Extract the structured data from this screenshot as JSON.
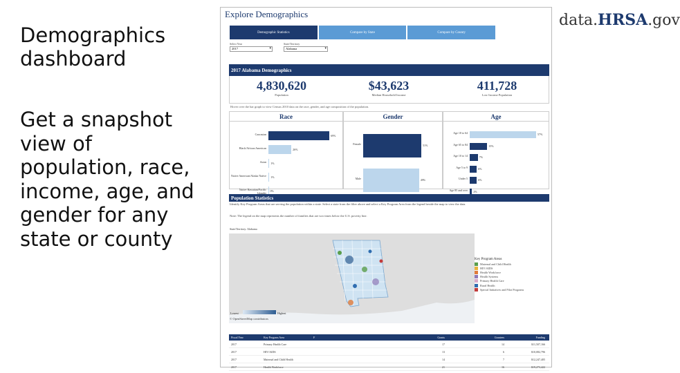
{
  "slide": {
    "title": "Demographics dashboard",
    "body": "Get a snapshot view of population, race, income, age, and gender for any state or county",
    "brand_prefix": "data.",
    "brand_main": "HRSA",
    "brand_suffix": ".gov"
  },
  "dashboard": {
    "title": "Explore Demographics",
    "tabs": [
      "Demographic Statistics",
      "Compare by State",
      "Compare by County"
    ],
    "filters": {
      "year_label": "Select Year",
      "year_value": "2017",
      "state_label": "State/Territory",
      "state_value": "Alabama"
    },
    "demo_band": "2017 Alabama Demographics",
    "stats": [
      {
        "value": "4,830,620",
        "label": "Population"
      },
      {
        "value": "$43,623",
        "label": "Median Household Income"
      },
      {
        "value": "411,728",
        "label": "Low Income Population"
      }
    ],
    "hover_note": "Hover over the bar graph to view Census 2010 data on the race, gender, and age composition of the population.",
    "race": {
      "title": "Race",
      "bars": [
        {
          "label": "Caucasian",
          "value": 69,
          "text": "69%"
        },
        {
          "label": "Black/African American",
          "value": 26,
          "text": "26%"
        },
        {
          "label": "Asian",
          "value": 1,
          "text": "1%"
        },
        {
          "label": "Native American/Alaska Native",
          "value": 1,
          "text": "1%"
        },
        {
          "label": "Native Hawaiian/Pacific Islander",
          "value": 0,
          "text": "0%"
        }
      ]
    },
    "gender": {
      "title": "Gender",
      "bars": [
        {
          "label": "Female",
          "value": 51,
          "text": "51%"
        },
        {
          "label": "Male",
          "value": 49,
          "text": "49%"
        }
      ]
    },
    "age": {
      "title": "Age",
      "bars": [
        {
          "label": "Age 18 to 64",
          "value": 57,
          "text": "57%"
        },
        {
          "label": "Age 65 to 84",
          "value": 15,
          "text": "15%"
        },
        {
          "label": "Age 10 to 14",
          "value": 7,
          "text": "7%"
        },
        {
          "label": "Age 5 to 9",
          "value": 6,
          "text": "6%"
        },
        {
          "label": "Under 5",
          "value": 6,
          "text": "6%"
        },
        {
          "label": "Age 85 and over",
          "value": 2,
          "text": "2%"
        }
      ]
    },
    "pop_band": "Population Statistics",
    "pop_intro": "Identify Key Program Areas that are serving the population within a state. Select a state from the filter above and select a Key Program Area from the legend beside the map to view the data.",
    "pop_note": "Note: The legend on the map represents the number of families that are two times below the U.S. poverty line.",
    "map_state_label": "State/Territory: Alabama",
    "map_attrib": "© OpenStreetMap contributors",
    "scale_low": "Lowest",
    "scale_high": "Highest",
    "legend": {
      "title": "Key Program Areas",
      "items": [
        {
          "label": "Maternal and Child Health",
          "color": "#5a9e4b"
        },
        {
          "label": "HIV/AIDS",
          "color": "#e8b33c"
        },
        {
          "label": "Health Workforce",
          "color": "#e07b39"
        },
        {
          "label": "Health Systems",
          "color": "#8e79b8"
        },
        {
          "label": "Primary Health Care",
          "color": "#d9a9c8"
        },
        {
          "label": "Rural Health",
          "color": "#2f6db0"
        },
        {
          "label": "Special Initiatives and Pilot Programs",
          "color": "#c23b3b"
        }
      ]
    },
    "table": {
      "headers": [
        "Fiscal Year",
        "Key Program Area",
        "F",
        "Grants",
        "Grantees",
        "Funding"
      ],
      "rows": [
        [
          "2017",
          "Primary Health Care",
          "",
          "17",
          "14",
          "$11,507,166"
        ],
        [
          "2017",
          "HIV/AIDS",
          "",
          "13",
          "6",
          "$10,082,796"
        ],
        [
          "2017",
          "Maternal and Child Health",
          "",
          "14",
          "7",
          "$12,247,405"
        ],
        [
          "2017",
          "Health Workforce",
          "",
          "21",
          "16",
          "$19,273,422"
        ]
      ]
    }
  }
}
